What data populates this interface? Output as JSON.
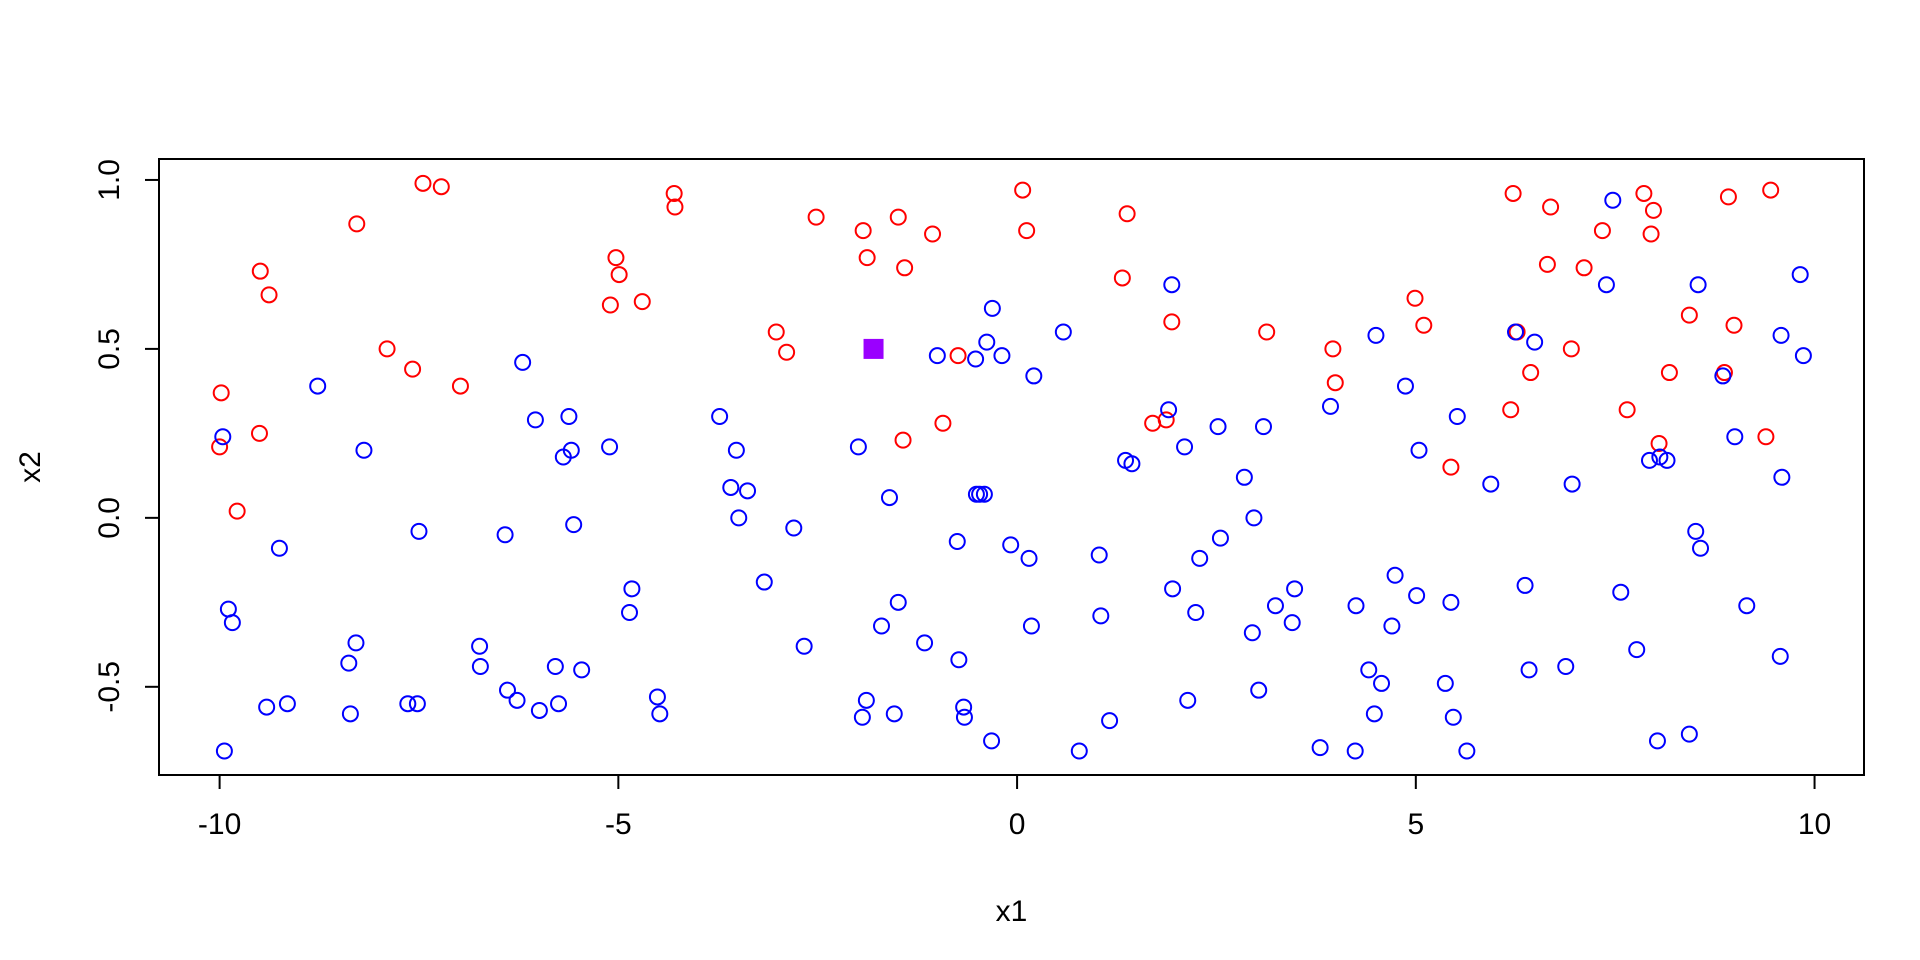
{
  "chart_data": {
    "type": "scatter",
    "title": "",
    "xlabel": "x1",
    "ylabel": "x2",
    "xlim": [
      -10.76,
      10.62
    ],
    "ylim": [
      -0.761,
      1.062
    ],
    "x_ticks": [
      -10,
      -5,
      0,
      5,
      10
    ],
    "x_tick_labels": [
      "-10",
      "-5",
      "0",
      "5",
      "10"
    ],
    "y_ticks": [
      -0.5,
      0.0,
      0.5,
      1.0
    ],
    "y_tick_labels": [
      "-0.5",
      "0.0",
      "0.5",
      "1.0"
    ],
    "grid": false,
    "series": [
      {
        "color": "#ff0000",
        "marker": "open-circle",
        "points": [
          [
            -9.98,
            0.37
          ],
          [
            -10.0,
            0.21
          ],
          [
            -9.78,
            0.02
          ],
          [
            -9.49,
            0.73
          ],
          [
            -9.38,
            0.66
          ],
          [
            -9.5,
            0.25
          ],
          [
            -8.28,
            0.87
          ],
          [
            -7.9,
            0.5
          ],
          [
            -7.58,
            0.44
          ],
          [
            -7.45,
            0.99
          ],
          [
            -7.22,
            0.98
          ],
          [
            -6.98,
            0.39
          ],
          [
            -5.1,
            0.63
          ],
          [
            -5.03,
            0.77
          ],
          [
            -4.99,
            0.72
          ],
          [
            -4.7,
            0.64
          ],
          [
            -4.3,
            0.96
          ],
          [
            -4.29,
            0.92
          ],
          [
            -3.02,
            0.55
          ],
          [
            -2.89,
            0.49
          ],
          [
            -2.52,
            0.89
          ],
          [
            -1.93,
            0.85
          ],
          [
            -1.88,
            0.77
          ],
          [
            -1.49,
            0.89
          ],
          [
            -1.41,
            0.74
          ],
          [
            -1.43,
            0.23
          ],
          [
            -1.06,
            0.84
          ],
          [
            -0.93,
            0.28
          ],
          [
            -0.74,
            0.48
          ],
          [
            0.07,
            0.97
          ],
          [
            0.12,
            0.85
          ],
          [
            1.32,
            0.71
          ],
          [
            1.38,
            0.9
          ],
          [
            1.7,
            0.28
          ],
          [
            1.87,
            0.29
          ],
          [
            1.94,
            0.58
          ],
          [
            3.13,
            0.55
          ],
          [
            3.96,
            0.5
          ],
          [
            3.99,
            0.4
          ],
          [
            4.99,
            0.65
          ],
          [
            5.1,
            0.57
          ],
          [
            5.44,
            0.15
          ],
          [
            6.19,
            0.32
          ],
          [
            6.22,
            0.96
          ],
          [
            6.27,
            0.55
          ],
          [
            6.44,
            0.43
          ],
          [
            6.65,
            0.75
          ],
          [
            6.69,
            0.92
          ],
          [
            6.95,
            0.5
          ],
          [
            7.11,
            0.74
          ],
          [
            7.34,
            0.85
          ],
          [
            7.65,
            0.32
          ],
          [
            7.86,
            0.96
          ],
          [
            7.95,
            0.84
          ],
          [
            7.98,
            0.91
          ],
          [
            8.05,
            0.22
          ],
          [
            8.18,
            0.43
          ],
          [
            8.43,
            0.6
          ],
          [
            8.87,
            0.43
          ],
          [
            8.92,
            0.95
          ],
          [
            8.99,
            0.57
          ],
          [
            9.39,
            0.24
          ],
          [
            9.45,
            0.97
          ]
        ]
      },
      {
        "color": "#0000ff",
        "marker": "open-circle",
        "points": [
          [
            -9.96,
            0.24
          ],
          [
            -9.94,
            -0.69
          ],
          [
            -9.89,
            -0.27
          ],
          [
            -9.84,
            -0.31
          ],
          [
            -9.41,
            -0.56
          ],
          [
            -9.25,
            -0.09
          ],
          [
            -9.15,
            -0.55
          ],
          [
            -8.77,
            0.39
          ],
          [
            -8.38,
            -0.43
          ],
          [
            -8.36,
            -0.58
          ],
          [
            -8.29,
            -0.37
          ],
          [
            -8.19,
            0.2
          ],
          [
            -7.64,
            -0.55
          ],
          [
            -7.52,
            -0.55
          ],
          [
            -7.5,
            -0.04
          ],
          [
            -6.74,
            -0.38
          ],
          [
            -6.73,
            -0.44
          ],
          [
            -6.42,
            -0.05
          ],
          [
            -6.39,
            -0.51
          ],
          [
            -6.27,
            -0.54
          ],
          [
            -6.2,
            0.46
          ],
          [
            -6.04,
            0.29
          ],
          [
            -5.99,
            -0.57
          ],
          [
            -5.79,
            -0.44
          ],
          [
            -5.75,
            -0.55
          ],
          [
            -5.69,
            0.18
          ],
          [
            -5.62,
            0.3
          ],
          [
            -5.59,
            0.2
          ],
          [
            -5.56,
            -0.02
          ],
          [
            -5.46,
            -0.45
          ],
          [
            -5.11,
            0.21
          ],
          [
            -4.83,
            -0.21
          ],
          [
            -4.86,
            -0.28
          ],
          [
            -4.51,
            -0.53
          ],
          [
            -4.48,
            -0.58
          ],
          [
            -3.73,
            0.3
          ],
          [
            -3.59,
            0.09
          ],
          [
            -3.52,
            0.2
          ],
          [
            -3.49,
            -0.0
          ],
          [
            -3.38,
            0.08
          ],
          [
            -3.17,
            -0.19
          ],
          [
            -2.8,
            -0.03
          ],
          [
            -2.67,
            -0.38
          ],
          [
            -1.99,
            0.21
          ],
          [
            -1.94,
            -0.59
          ],
          [
            -1.89,
            -0.54
          ],
          [
            -1.7,
            -0.32
          ],
          [
            -1.6,
            0.06
          ],
          [
            -1.54,
            -0.58
          ],
          [
            -1.49,
            -0.25
          ],
          [
            -1.16,
            -0.37
          ],
          [
            -1.0,
            0.48
          ],
          [
            -0.75,
            -0.07
          ],
          [
            -0.73,
            -0.42
          ],
          [
            -0.67,
            -0.56
          ],
          [
            -0.66,
            -0.59
          ],
          [
            -0.52,
            0.47
          ],
          [
            -0.51,
            0.07
          ],
          [
            -0.47,
            0.07
          ],
          [
            -0.41,
            0.07
          ],
          [
            -0.38,
            0.52
          ],
          [
            -0.32,
            -0.66
          ],
          [
            -0.31,
            0.62
          ],
          [
            -0.19,
            0.48
          ],
          [
            -0.08,
            -0.08
          ],
          [
            0.15,
            -0.12
          ],
          [
            0.18,
            -0.32
          ],
          [
            0.21,
            0.42
          ],
          [
            0.58,
            0.55
          ],
          [
            0.78,
            -0.69
          ],
          [
            1.03,
            -0.11
          ],
          [
            1.05,
            -0.29
          ],
          [
            1.16,
            -0.6
          ],
          [
            1.36,
            0.17
          ],
          [
            1.44,
            0.16
          ],
          [
            1.9,
            0.32
          ],
          [
            1.94,
            0.69
          ],
          [
            1.95,
            -0.21
          ],
          [
            2.1,
            0.21
          ],
          [
            2.14,
            -0.54
          ],
          [
            2.24,
            -0.28
          ],
          [
            2.29,
            -0.12
          ],
          [
            2.52,
            0.27
          ],
          [
            2.55,
            -0.06
          ],
          [
            2.85,
            0.12
          ],
          [
            2.95,
            -0.34
          ],
          [
            2.97,
            -0.0
          ],
          [
            3.03,
            -0.51
          ],
          [
            3.09,
            0.27
          ],
          [
            3.24,
            -0.26
          ],
          [
            3.45,
            -0.31
          ],
          [
            3.48,
            -0.21
          ],
          [
            3.8,
            -0.68
          ],
          [
            3.93,
            0.33
          ],
          [
            4.24,
            -0.69
          ],
          [
            4.25,
            -0.26
          ],
          [
            4.41,
            -0.45
          ],
          [
            4.48,
            -0.58
          ],
          [
            4.5,
            0.54
          ],
          [
            4.57,
            -0.49
          ],
          [
            4.7,
            -0.32
          ],
          [
            4.74,
            -0.17
          ],
          [
            4.87,
            0.39
          ],
          [
            5.01,
            -0.23
          ],
          [
            5.04,
            0.2
          ],
          [
            5.37,
            -0.49
          ],
          [
            5.44,
            -0.25
          ],
          [
            5.47,
            -0.59
          ],
          [
            5.52,
            0.3
          ],
          [
            5.64,
            -0.69
          ],
          [
            5.94,
            0.1
          ],
          [
            6.25,
            0.55
          ],
          [
            6.37,
            -0.2
          ],
          [
            6.42,
            -0.45
          ],
          [
            6.49,
            0.52
          ],
          [
            6.88,
            -0.44
          ],
          [
            6.96,
            0.1
          ],
          [
            7.39,
            0.69
          ],
          [
            7.47,
            0.94
          ],
          [
            7.57,
            -0.22
          ],
          [
            7.77,
            -0.39
          ],
          [
            7.93,
            0.17
          ],
          [
            8.03,
            -0.66
          ],
          [
            8.06,
            0.18
          ],
          [
            8.15,
            0.17
          ],
          [
            8.43,
            -0.64
          ],
          [
            8.51,
            -0.04
          ],
          [
            8.54,
            0.69
          ],
          [
            8.57,
            -0.09
          ],
          [
            8.85,
            0.42
          ],
          [
            9.0,
            0.24
          ],
          [
            9.15,
            -0.26
          ],
          [
            9.58,
            0.54
          ],
          [
            9.57,
            -0.41
          ],
          [
            9.59,
            0.12
          ],
          [
            9.82,
            0.72
          ],
          [
            9.86,
            0.48
          ]
        ]
      },
      {
        "color": "#9a00ff",
        "marker": "filled-square",
        "points": [
          [
            -1.8,
            0.5
          ]
        ]
      }
    ]
  }
}
